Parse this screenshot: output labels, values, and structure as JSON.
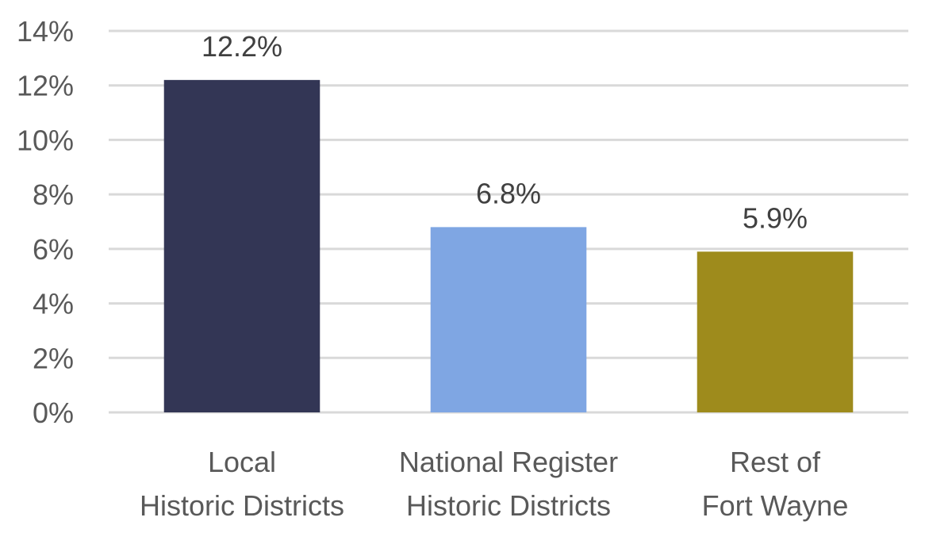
{
  "chart_data": {
    "type": "bar",
    "title": "",
    "xlabel": "",
    "ylabel": "",
    "categories": [
      [
        "Local",
        "Historic Districts"
      ],
      [
        "National Register",
        "Historic Districts"
      ],
      [
        "Rest of",
        "Fort Wayne"
      ]
    ],
    "values": [
      12.2,
      6.8,
      5.9
    ],
    "data_labels": [
      "12.2%",
      "6.8%",
      "5.9%"
    ],
    "colors": [
      "#333655",
      "#7fa6e3",
      "#9e8b1c"
    ],
    "ylim": [
      0,
      14
    ],
    "yticks": [
      0,
      2,
      4,
      6,
      8,
      10,
      12,
      14
    ],
    "ytick_labels": [
      "0%",
      "2%",
      "4%",
      "6%",
      "8%",
      "10%",
      "12%",
      "14%"
    ],
    "grid": true,
    "legend": "none"
  }
}
